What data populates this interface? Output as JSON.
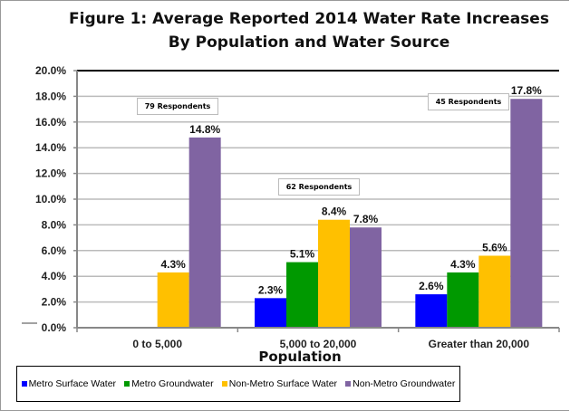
{
  "chart_data": {
    "type": "bar",
    "title": "Figure 1: Average Reported 2014 Water Rate Increases",
    "subtitle": "By Population and Water Source",
    "xlabel": "Population",
    "ylabel": "",
    "ylim": [
      0,
      20
    ],
    "yticks": [
      "0.0%",
      "2.0%",
      "4.0%",
      "6.0%",
      "8.0%",
      "10.0%",
      "12.0%",
      "14.0%",
      "16.0%",
      "18.0%",
      "20.0%"
    ],
    "grid": true,
    "legend_position": "bottom",
    "categories": [
      "0 to 5,000",
      "5,000 to 20,000",
      "Greater than 20,000"
    ],
    "series": [
      {
        "name": "Metro Surface Water",
        "color": "#0000FF",
        "values": [
          null,
          2.3,
          2.6
        ],
        "labels": [
          "",
          "2.3%",
          "2.6%"
        ]
      },
      {
        "name": "Metro Groundwater",
        "color": "#009900",
        "values": [
          null,
          5.1,
          4.3
        ],
        "labels": [
          "",
          "5.1%",
          "4.3%"
        ]
      },
      {
        "name": "Non-Metro Surface Water",
        "color": "#FFC000",
        "values": [
          4.3,
          8.4,
          5.6
        ],
        "labels": [
          "4.3%",
          "8.4%",
          "5.6%"
        ]
      },
      {
        "name": "Non-Metro Groundwater",
        "color": "#8064A2",
        "values": [
          14.8,
          7.8,
          17.8
        ],
        "labels": [
          "14.8%",
          "7.8%",
          "17.8%"
        ]
      }
    ],
    "annotations": [
      "79 Respondents",
      "62 Respondents",
      "45 Respondents"
    ]
  }
}
